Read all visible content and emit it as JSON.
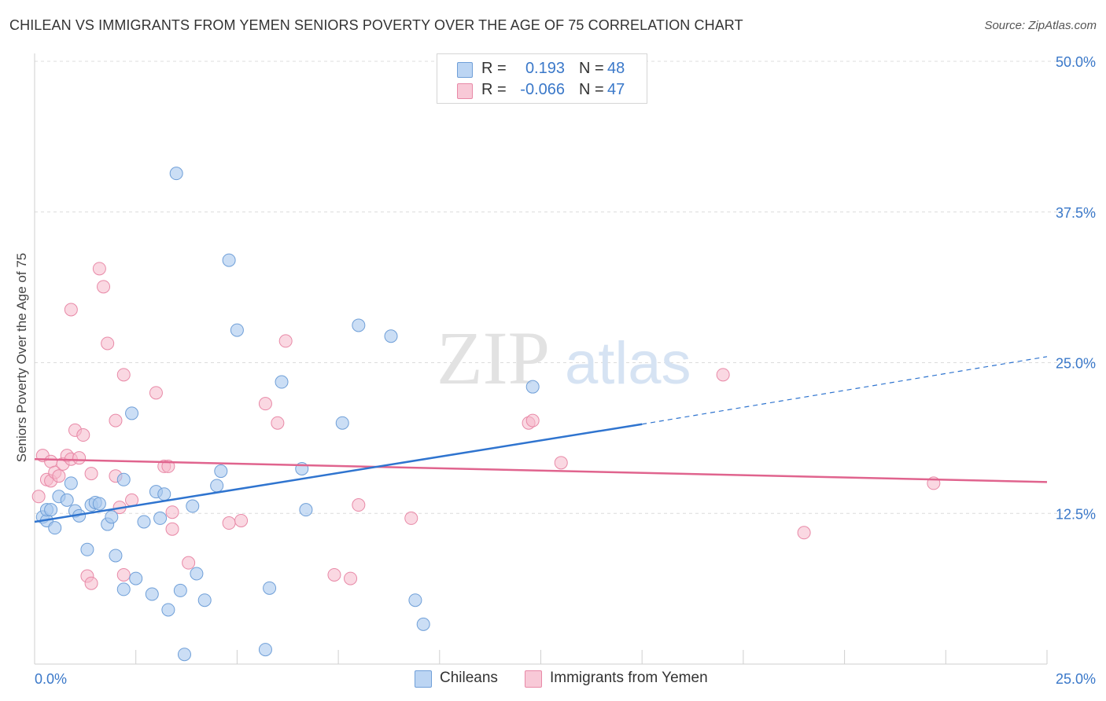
{
  "title": "CHILEAN VS IMMIGRANTS FROM YEMEN SENIORS POVERTY OVER THE AGE OF 75 CORRELATION CHART",
  "source": "Source: ZipAtlas.com",
  "watermark": {
    "zip": "ZIP",
    "atlas": "atlas"
  },
  "legend": {
    "rows": [
      {
        "r_label": "R =",
        "r_value": "0.193",
        "n_label": "N =",
        "n_value": "48"
      },
      {
        "r_label": "R =",
        "r_value": "-0.066",
        "n_label": "N =",
        "n_value": "47"
      }
    ]
  },
  "bottom_legend": {
    "series1": "Chileans",
    "series2": "Immigrants from Yemen"
  },
  "colors": {
    "blue_fill": "#a9c8ee",
    "blue_stroke": "#6f9fd8",
    "blue_line": "#2f74cf",
    "pink_fill": "#f6b8cb",
    "pink_stroke": "#e889a7",
    "pink_line": "#e0648e",
    "axis_label": "#3a78c9",
    "grid": "#dcdcdc"
  },
  "chart_data": {
    "type": "scatter",
    "title": "CHILEAN VS IMMIGRANTS FROM YEMEN SENIORS POVERTY OVER THE AGE OF 75 CORRELATION CHART",
    "xlabel": "",
    "ylabel": "Seniors Poverty Over the Age of 75",
    "xlim": [
      0,
      25
    ],
    "ylim": [
      0,
      50
    ],
    "x_tick_labels": [
      {
        "value": 0,
        "label": "0.0%"
      },
      {
        "value": 25,
        "label": "25.0%"
      }
    ],
    "y_tick_labels": [
      {
        "value": 12.5,
        "label": "12.5%"
      },
      {
        "value": 25,
        "label": "25.0%"
      },
      {
        "value": 37.5,
        "label": "37.5%"
      },
      {
        "value": 50,
        "label": "50.0%"
      }
    ],
    "grid": true,
    "series": [
      {
        "name": "Chileans",
        "r": 0.193,
        "n": 48,
        "trend": {
          "x0": 0,
          "y0": 11.8,
          "x1": 15,
          "y1": 19.9,
          "dashed_to_x": 25,
          "dashed_to_y": 25.5
        },
        "points": [
          [
            0.2,
            12.2
          ],
          [
            0.3,
            11.9
          ],
          [
            0.3,
            12.8
          ],
          [
            0.4,
            12.8
          ],
          [
            0.5,
            11.3
          ],
          [
            0.6,
            13.9
          ],
          [
            0.8,
            13.6
          ],
          [
            0.9,
            15.0
          ],
          [
            1.0,
            12.7
          ],
          [
            1.1,
            12.3
          ],
          [
            1.3,
            9.5
          ],
          [
            1.4,
            13.2
          ],
          [
            1.5,
            13.4
          ],
          [
            1.6,
            13.3
          ],
          [
            1.8,
            11.6
          ],
          [
            1.9,
            12.2
          ],
          [
            2.0,
            9.0
          ],
          [
            2.2,
            6.2
          ],
          [
            2.2,
            15.3
          ],
          [
            2.4,
            20.8
          ],
          [
            2.5,
            7.1
          ],
          [
            2.7,
            11.8
          ],
          [
            2.9,
            5.8
          ],
          [
            3.0,
            14.3
          ],
          [
            3.1,
            12.1
          ],
          [
            3.2,
            14.1
          ],
          [
            3.3,
            4.5
          ],
          [
            3.5,
            40.7
          ],
          [
            3.6,
            6.1
          ],
          [
            3.7,
            0.8
          ],
          [
            3.9,
            13.1
          ],
          [
            4.0,
            7.5
          ],
          [
            4.2,
            5.3
          ],
          [
            4.5,
            14.8
          ],
          [
            4.6,
            16.0
          ],
          [
            4.8,
            33.5
          ],
          [
            5.0,
            27.7
          ],
          [
            5.7,
            1.2
          ],
          [
            5.8,
            6.3
          ],
          [
            6.1,
            23.4
          ],
          [
            6.6,
            16.2
          ],
          [
            6.7,
            12.8
          ],
          [
            7.6,
            20.0
          ],
          [
            8.0,
            28.1
          ],
          [
            8.8,
            27.2
          ],
          [
            9.4,
            5.3
          ],
          [
            9.6,
            3.3
          ],
          [
            12.3,
            23.0
          ]
        ]
      },
      {
        "name": "Immigrants from Yemen",
        "r": -0.066,
        "n": 47,
        "trend": {
          "x0": 0,
          "y0": 17.0,
          "x1": 25,
          "y1": 15.1
        },
        "points": [
          [
            0.1,
            13.9
          ],
          [
            0.2,
            17.3
          ],
          [
            0.3,
            15.3
          ],
          [
            0.4,
            15.2
          ],
          [
            0.4,
            16.8
          ],
          [
            0.5,
            15.9
          ],
          [
            0.6,
            15.6
          ],
          [
            0.7,
            16.6
          ],
          [
            0.8,
            17.3
          ],
          [
            0.9,
            17.0
          ],
          [
            0.9,
            29.4
          ],
          [
            1.0,
            19.4
          ],
          [
            1.1,
            17.1
          ],
          [
            1.2,
            19.0
          ],
          [
            1.3,
            7.3
          ],
          [
            1.4,
            15.8
          ],
          [
            1.4,
            6.7
          ],
          [
            1.6,
            32.8
          ],
          [
            1.7,
            31.3
          ],
          [
            1.8,
            26.6
          ],
          [
            2.0,
            15.6
          ],
          [
            2.0,
            20.2
          ],
          [
            2.1,
            13.0
          ],
          [
            2.2,
            24.0
          ],
          [
            2.2,
            7.4
          ],
          [
            2.4,
            13.6
          ],
          [
            3.0,
            22.5
          ],
          [
            3.2,
            16.4
          ],
          [
            3.3,
            16.4
          ],
          [
            3.4,
            11.2
          ],
          [
            3.4,
            12.6
          ],
          [
            3.8,
            8.4
          ],
          [
            4.8,
            11.7
          ],
          [
            5.1,
            11.9
          ],
          [
            5.7,
            21.6
          ],
          [
            6.0,
            20.0
          ],
          [
            6.2,
            26.8
          ],
          [
            7.4,
            7.4
          ],
          [
            7.8,
            7.1
          ],
          [
            8.0,
            13.2
          ],
          [
            9.3,
            12.1
          ],
          [
            12.2,
            20.0
          ],
          [
            12.3,
            20.2
          ],
          [
            13.0,
            16.7
          ],
          [
            17.0,
            24.0
          ],
          [
            19.0,
            10.9
          ],
          [
            22.2,
            15.0
          ]
        ]
      }
    ]
  }
}
